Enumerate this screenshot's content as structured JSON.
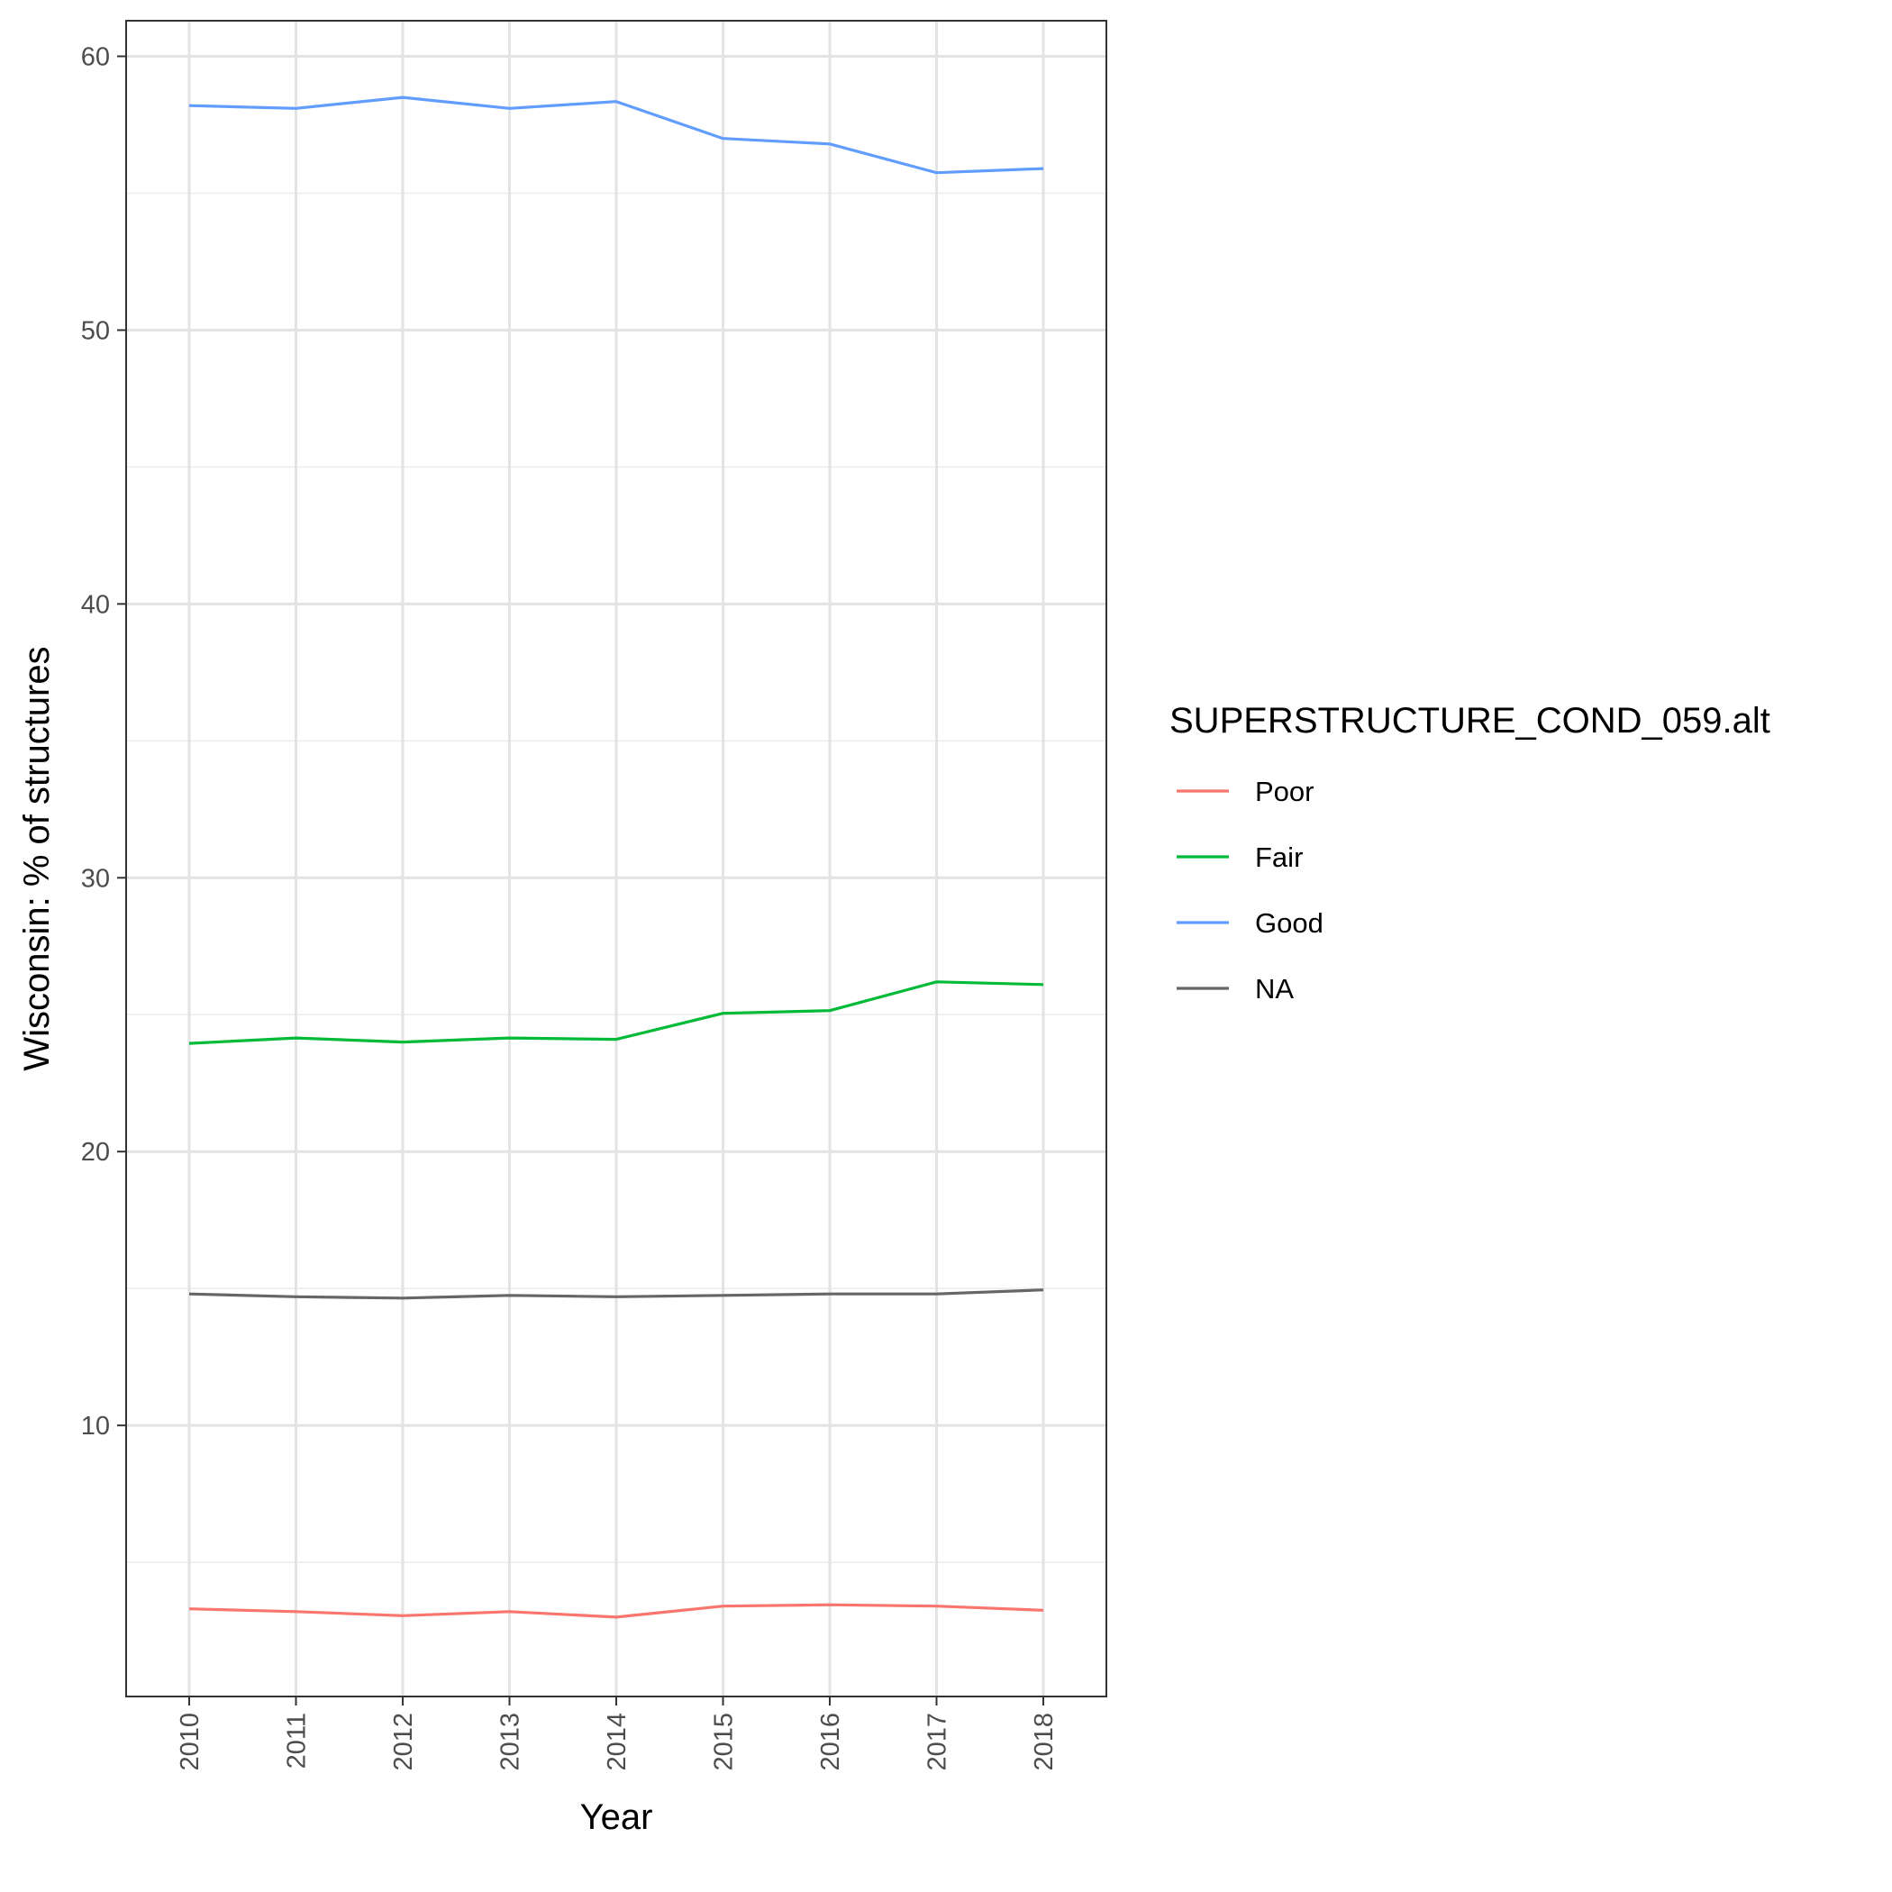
{
  "chart_data": {
    "type": "line",
    "xlabel": "Year",
    "ylabel": "Wisconsin: % of structures",
    "x": [
      2010,
      2011,
      2012,
      2013,
      2014,
      2015,
      2016,
      2017,
      2018
    ],
    "ylim": [
      0.1,
      61.3
    ],
    "yticks": [
      10,
      20,
      30,
      40,
      50,
      60
    ],
    "grid": true,
    "legend": {
      "title": "SUPERSTRUCTURE_COND_059.alt",
      "position": "right"
    },
    "series": [
      {
        "name": "Poor",
        "color": "#F8766D",
        "values": [
          3.3,
          3.2,
          3.05,
          3.2,
          3.0,
          3.4,
          3.45,
          3.4,
          3.25
        ]
      },
      {
        "name": "Fair",
        "color": "#00BA38",
        "values": [
          23.95,
          24.15,
          24.0,
          24.15,
          24.1,
          25.05,
          25.15,
          26.2,
          26.1
        ]
      },
      {
        "name": "Good",
        "color": "#619CFF",
        "values": [
          58.2,
          58.1,
          58.5,
          58.1,
          58.35,
          57.0,
          56.8,
          55.75,
          55.9
        ]
      },
      {
        "name": "NA",
        "color": "#666666",
        "values": [
          14.8,
          14.7,
          14.65,
          14.75,
          14.7,
          14.75,
          14.8,
          14.8,
          14.95
        ]
      }
    ]
  }
}
